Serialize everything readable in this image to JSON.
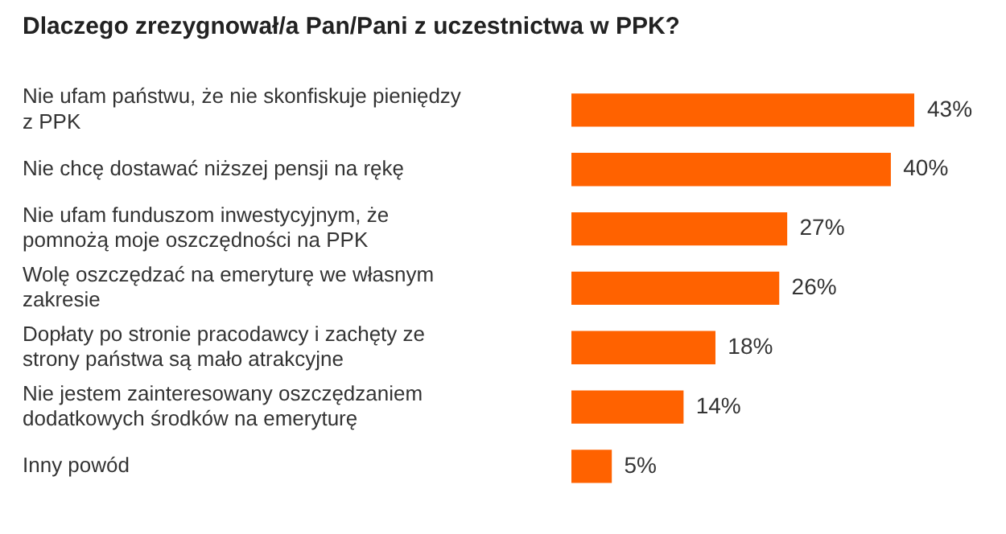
{
  "chart_data": {
    "type": "bar",
    "orientation": "horizontal",
    "title": "Dlaczego zrezygnował/a Pan/Pani z uczestnictwa w PPK?",
    "categories": [
      "Nie ufam państwu, że nie skonfiskuje pieniędzy z PPK",
      "Nie chcę dostawać niższej pensji na rękę",
      "Nie ufam funduszom inwestycyjnym, że pomnożą moje oszczędności na PPK",
      "Wolę oszczędzać na emeryturę we własnym zakresie",
      "Dopłaty po stronie pracodawcy i zachęty ze strony państwa są mało atrakcyjne",
      "Nie jestem zainteresowany oszczędzaniem dodatkowych środków na emeryturę",
      "Inny powód"
    ],
    "values": [
      43,
      40,
      27,
      26,
      18,
      14,
      5
    ],
    "value_labels": [
      "43%",
      "40%",
      "27%",
      "26%",
      "18%",
      "14%",
      "5%"
    ],
    "color": "#ff6200",
    "grid": false,
    "legend": false
  }
}
